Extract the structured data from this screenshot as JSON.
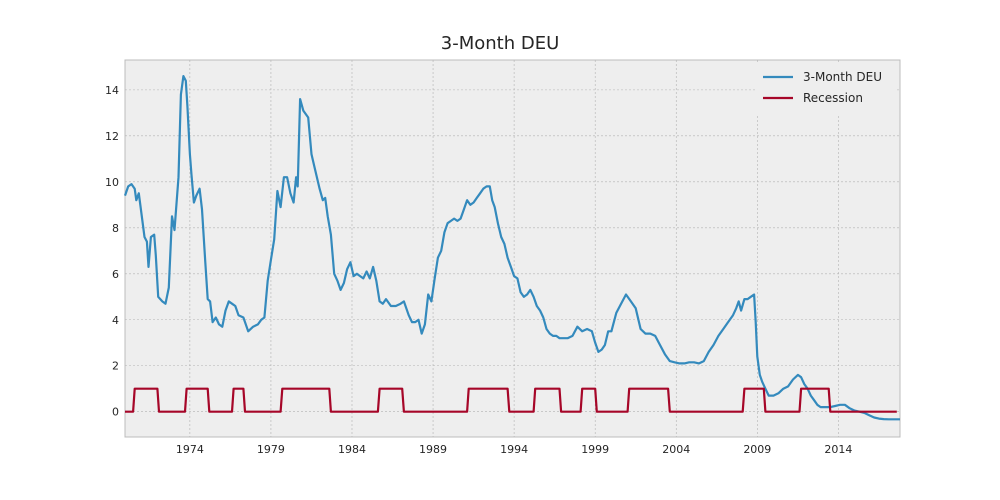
{
  "chart_data": {
    "type": "line",
    "title": "3-Month DEU",
    "xlabel": "",
    "ylabel": "",
    "xlim": [
      1970.0,
      2017.8
    ],
    "ylim": [
      -1.1,
      15.3
    ],
    "x_ticks": [
      1974,
      1979,
      1984,
      1989,
      1994,
      1999,
      2004,
      2009,
      2014
    ],
    "y_ticks": [
      0,
      2,
      4,
      6,
      8,
      10,
      12,
      14
    ],
    "grid": true,
    "legend_position": "top-right",
    "series": [
      {
        "name": "3-Month DEU",
        "color": "#348abd",
        "points": [
          [
            1970.0,
            9.4
          ],
          [
            1970.2,
            9.8
          ],
          [
            1970.4,
            9.9
          ],
          [
            1970.6,
            9.7
          ],
          [
            1970.7,
            9.2
          ],
          [
            1970.85,
            9.5
          ],
          [
            1971.0,
            8.7
          ],
          [
            1971.2,
            7.6
          ],
          [
            1971.35,
            7.4
          ],
          [
            1971.45,
            6.3
          ],
          [
            1971.6,
            7.6
          ],
          [
            1971.8,
            7.7
          ],
          [
            1971.9,
            6.8
          ],
          [
            1972.05,
            5.0
          ],
          [
            1972.3,
            4.8
          ],
          [
            1972.5,
            4.7
          ],
          [
            1972.7,
            5.4
          ],
          [
            1972.9,
            8.5
          ],
          [
            1973.05,
            7.9
          ],
          [
            1973.3,
            10.2
          ],
          [
            1973.45,
            13.8
          ],
          [
            1973.6,
            14.6
          ],
          [
            1973.75,
            14.4
          ],
          [
            1973.85,
            13.3
          ],
          [
            1974.0,
            11.2
          ],
          [
            1974.1,
            10.3
          ],
          [
            1974.25,
            9.1
          ],
          [
            1974.4,
            9.4
          ],
          [
            1974.6,
            9.7
          ],
          [
            1974.75,
            8.8
          ],
          [
            1974.95,
            6.5
          ],
          [
            1975.1,
            4.9
          ],
          [
            1975.25,
            4.8
          ],
          [
            1975.4,
            3.9
          ],
          [
            1975.6,
            4.1
          ],
          [
            1975.8,
            3.8
          ],
          [
            1976.0,
            3.7
          ],
          [
            1976.2,
            4.4
          ],
          [
            1976.4,
            4.8
          ],
          [
            1976.6,
            4.7
          ],
          [
            1976.8,
            4.6
          ],
          [
            1977.0,
            4.2
          ],
          [
            1977.3,
            4.1
          ],
          [
            1977.6,
            3.5
          ],
          [
            1977.9,
            3.7
          ],
          [
            1978.2,
            3.8
          ],
          [
            1978.4,
            4.0
          ],
          [
            1978.6,
            4.1
          ],
          [
            1978.8,
            5.7
          ],
          [
            1979.0,
            6.6
          ],
          [
            1979.2,
            7.5
          ],
          [
            1979.4,
            9.6
          ],
          [
            1979.6,
            8.9
          ],
          [
            1979.8,
            10.2
          ],
          [
            1980.0,
            10.2
          ],
          [
            1980.2,
            9.5
          ],
          [
            1980.4,
            9.1
          ],
          [
            1980.55,
            10.2
          ],
          [
            1980.65,
            9.8
          ],
          [
            1980.8,
            13.6
          ],
          [
            1981.0,
            13.1
          ],
          [
            1981.3,
            12.8
          ],
          [
            1981.5,
            11.2
          ],
          [
            1981.7,
            10.6
          ],
          [
            1982.0,
            9.7
          ],
          [
            1982.2,
            9.2
          ],
          [
            1982.35,
            9.3
          ],
          [
            1982.5,
            8.5
          ],
          [
            1982.7,
            7.7
          ],
          [
            1982.9,
            6.0
          ],
          [
            1983.1,
            5.7
          ],
          [
            1983.3,
            5.3
          ],
          [
            1983.5,
            5.6
          ],
          [
            1983.7,
            6.2
          ],
          [
            1983.9,
            6.5
          ],
          [
            1984.1,
            5.9
          ],
          [
            1984.3,
            6.0
          ],
          [
            1984.5,
            5.9
          ],
          [
            1984.7,
            5.8
          ],
          [
            1984.9,
            6.1
          ],
          [
            1985.1,
            5.8
          ],
          [
            1985.3,
            6.3
          ],
          [
            1985.5,
            5.7
          ],
          [
            1985.7,
            4.8
          ],
          [
            1985.9,
            4.7
          ],
          [
            1986.1,
            4.9
          ],
          [
            1986.4,
            4.6
          ],
          [
            1986.7,
            4.6
          ],
          [
            1987.0,
            4.7
          ],
          [
            1987.2,
            4.8
          ],
          [
            1987.5,
            4.2
          ],
          [
            1987.7,
            3.9
          ],
          [
            1987.9,
            3.9
          ],
          [
            1988.1,
            4.0
          ],
          [
            1988.3,
            3.4
          ],
          [
            1988.5,
            3.8
          ],
          [
            1988.7,
            5.1
          ],
          [
            1988.9,
            4.8
          ],
          [
            1989.1,
            5.8
          ],
          [
            1989.3,
            6.7
          ],
          [
            1989.5,
            7.0
          ],
          [
            1989.7,
            7.8
          ],
          [
            1989.9,
            8.2
          ],
          [
            1990.1,
            8.3
          ],
          [
            1990.3,
            8.4
          ],
          [
            1990.5,
            8.3
          ],
          [
            1990.7,
            8.4
          ],
          [
            1990.9,
            8.8
          ],
          [
            1991.1,
            9.2
          ],
          [
            1991.3,
            9.0
          ],
          [
            1991.5,
            9.1
          ],
          [
            1991.7,
            9.3
          ],
          [
            1991.9,
            9.5
          ],
          [
            1992.1,
            9.7
          ],
          [
            1992.3,
            9.8
          ],
          [
            1992.5,
            9.8
          ],
          [
            1992.65,
            9.2
          ],
          [
            1992.8,
            8.9
          ],
          [
            1993.0,
            8.2
          ],
          [
            1993.2,
            7.6
          ],
          [
            1993.4,
            7.3
          ],
          [
            1993.6,
            6.7
          ],
          [
            1993.8,
            6.3
          ],
          [
            1994.0,
            5.9
          ],
          [
            1994.2,
            5.8
          ],
          [
            1994.4,
            5.2
          ],
          [
            1994.6,
            5.0
          ],
          [
            1994.8,
            5.1
          ],
          [
            1995.0,
            5.3
          ],
          [
            1995.2,
            5.0
          ],
          [
            1995.4,
            4.6
          ],
          [
            1995.6,
            4.4
          ],
          [
            1995.8,
            4.1
          ],
          [
            1996.0,
            3.6
          ],
          [
            1996.2,
            3.4
          ],
          [
            1996.4,
            3.3
          ],
          [
            1996.6,
            3.3
          ],
          [
            1996.8,
            3.2
          ],
          [
            1997.0,
            3.2
          ],
          [
            1997.3,
            3.2
          ],
          [
            1997.6,
            3.3
          ],
          [
            1997.9,
            3.7
          ],
          [
            1998.2,
            3.5
          ],
          [
            1998.5,
            3.6
          ],
          [
            1998.8,
            3.5
          ],
          [
            1999.0,
            3.0
          ],
          [
            1999.2,
            2.6
          ],
          [
            1999.4,
            2.7
          ],
          [
            1999.6,
            2.9
          ],
          [
            1999.8,
            3.5
          ],
          [
            2000.0,
            3.5
          ],
          [
            2000.3,
            4.3
          ],
          [
            2000.6,
            4.7
          ],
          [
            2000.9,
            5.1
          ],
          [
            2001.2,
            4.8
          ],
          [
            2001.5,
            4.5
          ],
          [
            2001.8,
            3.6
          ],
          [
            2002.1,
            3.4
          ],
          [
            2002.4,
            3.4
          ],
          [
            2002.7,
            3.3
          ],
          [
            2003.0,
            2.9
          ],
          [
            2003.3,
            2.5
          ],
          [
            2003.6,
            2.2
          ],
          [
            2003.9,
            2.15
          ],
          [
            2004.2,
            2.1
          ],
          [
            2004.5,
            2.1
          ],
          [
            2004.8,
            2.15
          ],
          [
            2005.1,
            2.15
          ],
          [
            2005.4,
            2.1
          ],
          [
            2005.7,
            2.2
          ],
          [
            2006.0,
            2.6
          ],
          [
            2006.3,
            2.9
          ],
          [
            2006.6,
            3.3
          ],
          [
            2006.9,
            3.6
          ],
          [
            2007.2,
            3.9
          ],
          [
            2007.5,
            4.2
          ],
          [
            2007.7,
            4.5
          ],
          [
            2007.85,
            4.8
          ],
          [
            2008.0,
            4.4
          ],
          [
            2008.2,
            4.9
          ],
          [
            2008.4,
            4.9
          ],
          [
            2008.6,
            5.0
          ],
          [
            2008.8,
            5.1
          ],
          [
            2008.9,
            3.9
          ],
          [
            2009.0,
            2.4
          ],
          [
            2009.15,
            1.6
          ],
          [
            2009.3,
            1.3
          ],
          [
            2009.5,
            1.0
          ],
          [
            2009.7,
            0.7
          ],
          [
            2010.0,
            0.7
          ],
          [
            2010.3,
            0.8
          ],
          [
            2010.6,
            1.0
          ],
          [
            2010.9,
            1.1
          ],
          [
            2011.2,
            1.4
          ],
          [
            2011.5,
            1.6
          ],
          [
            2011.7,
            1.5
          ],
          [
            2011.9,
            1.2
          ],
          [
            2012.1,
            1.0
          ],
          [
            2012.3,
            0.7
          ],
          [
            2012.5,
            0.5
          ],
          [
            2012.7,
            0.3
          ],
          [
            2012.9,
            0.2
          ],
          [
            2013.2,
            0.2
          ],
          [
            2013.5,
            0.2
          ],
          [
            2013.8,
            0.25
          ],
          [
            2014.1,
            0.3
          ],
          [
            2014.4,
            0.3
          ],
          [
            2014.7,
            0.15
          ],
          [
            2015.0,
            0.05
          ],
          [
            2015.3,
            0.0
          ],
          [
            2015.6,
            -0.05
          ],
          [
            2015.9,
            -0.15
          ],
          [
            2016.2,
            -0.25
          ],
          [
            2016.5,
            -0.3
          ],
          [
            2016.8,
            -0.32
          ],
          [
            2017.1,
            -0.33
          ],
          [
            2017.4,
            -0.33
          ],
          [
            2017.8,
            -0.33
          ]
        ]
      },
      {
        "name": "Recession",
        "color": "#a60628",
        "points": [
          [
            1970.0,
            0
          ],
          [
            1970.5,
            0
          ],
          [
            1970.6,
            1
          ],
          [
            1972.0,
            1
          ],
          [
            1972.1,
            0
          ],
          [
            1973.7,
            0
          ],
          [
            1973.8,
            1
          ],
          [
            1975.1,
            1
          ],
          [
            1975.2,
            0
          ],
          [
            1976.6,
            0
          ],
          [
            1976.7,
            1
          ],
          [
            1977.3,
            1
          ],
          [
            1977.4,
            0
          ],
          [
            1979.6,
            0
          ],
          [
            1979.7,
            1
          ],
          [
            1982.6,
            1
          ],
          [
            1982.7,
            0
          ],
          [
            1985.6,
            0
          ],
          [
            1985.7,
            1
          ],
          [
            1987.1,
            1
          ],
          [
            1987.2,
            0
          ],
          [
            1991.1,
            0
          ],
          [
            1991.2,
            1
          ],
          [
            1993.6,
            1
          ],
          [
            1993.7,
            0
          ],
          [
            1995.2,
            0
          ],
          [
            1995.3,
            1
          ],
          [
            1996.8,
            1
          ],
          [
            1996.9,
            0
          ],
          [
            1998.1,
            0
          ],
          [
            1998.2,
            1
          ],
          [
            1999.0,
            1
          ],
          [
            1999.1,
            0
          ],
          [
            2001.0,
            0
          ],
          [
            2001.1,
            1
          ],
          [
            2003.5,
            1
          ],
          [
            2003.6,
            0
          ],
          [
            2008.1,
            0
          ],
          [
            2008.2,
            1
          ],
          [
            2009.4,
            1
          ],
          [
            2009.5,
            0
          ],
          [
            2011.6,
            0
          ],
          [
            2011.7,
            1
          ],
          [
            2013.4,
            1
          ],
          [
            2013.5,
            0
          ],
          [
            2017.6,
            0
          ]
        ]
      }
    ]
  }
}
